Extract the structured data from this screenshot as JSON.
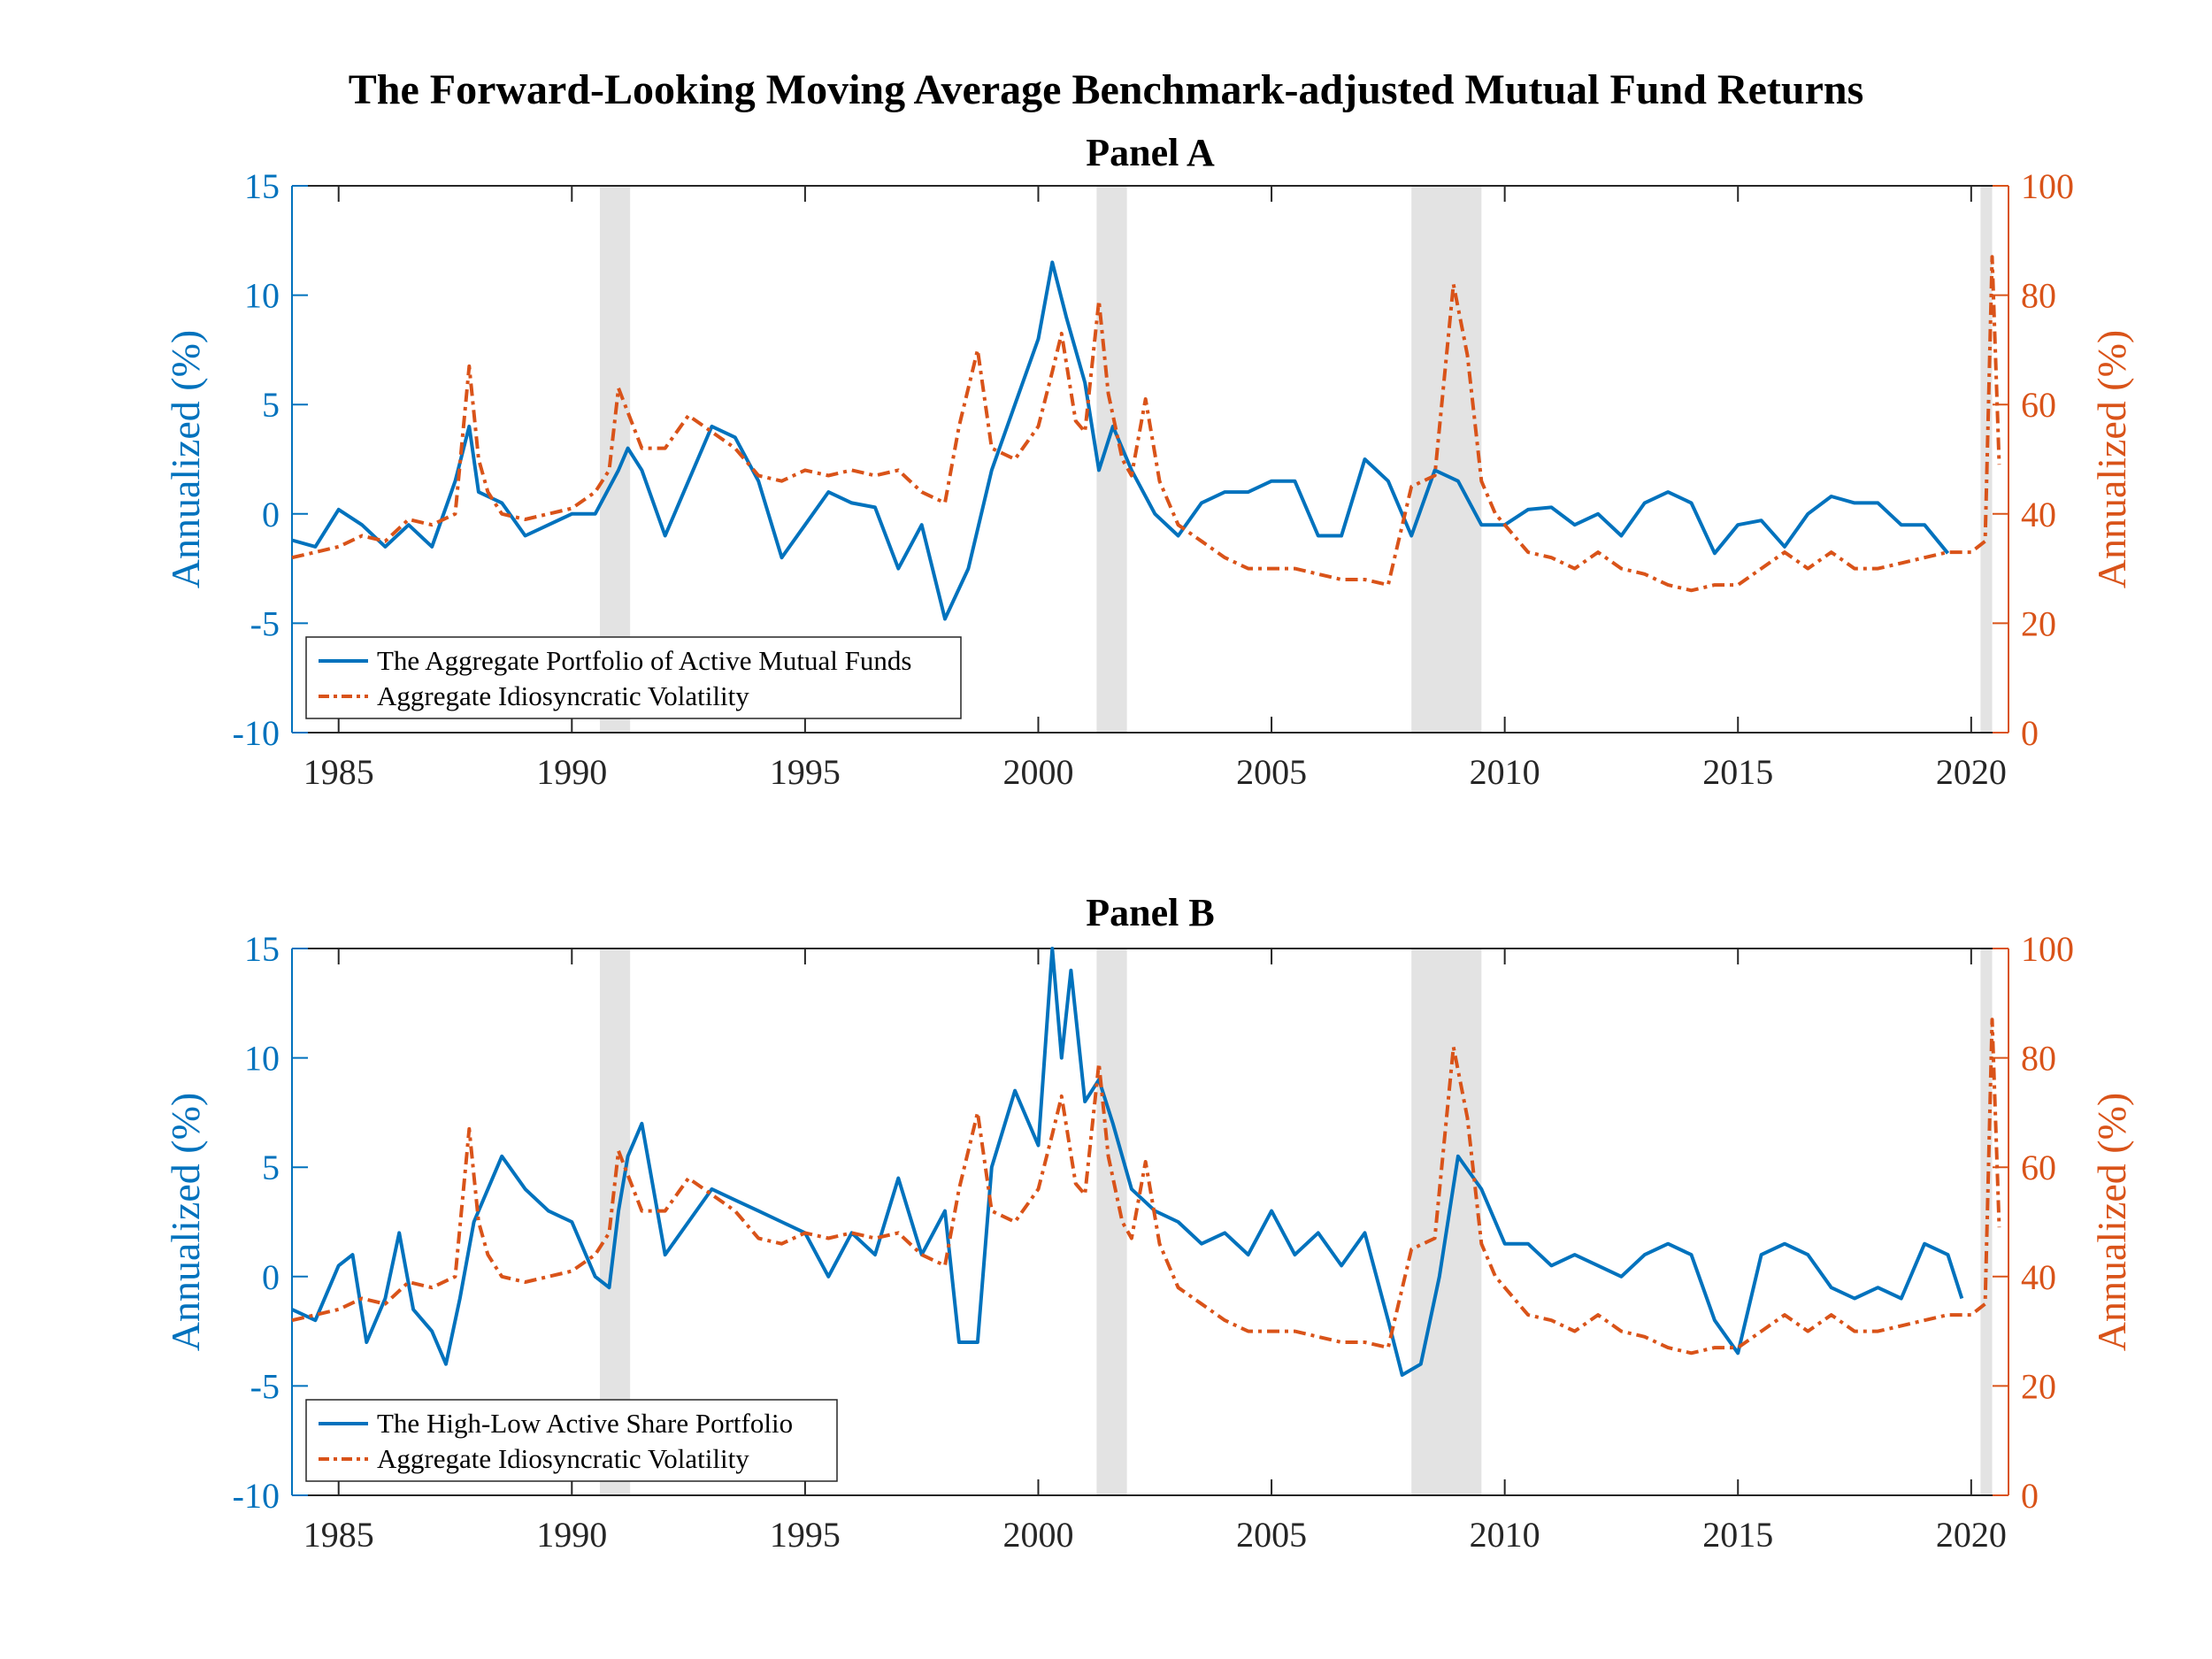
{
  "figure_title": "The Forward-Looking Moving Average Benchmark-adjusted Mutual Fund Returns",
  "colors": {
    "blue": "#0072BD",
    "orange": "#D95319",
    "recession_shade": "#E3E3E3",
    "axis": "#262626"
  },
  "chart_data": [
    {
      "type": "line",
      "title": "Panel A",
      "xlim": [
        1984.0,
        2020.8
      ],
      "xticks": [
        1985,
        1990,
        1995,
        2000,
        2005,
        2010,
        2015,
        2020
      ],
      "ylabel_left": "Annualized (%)",
      "ylim_left": [
        -10,
        15
      ],
      "yticks_left": [
        -10,
        -5,
        0,
        5,
        10,
        15
      ],
      "ylabel_right": "Annualized (%)",
      "ylim_right": [
        0,
        100
      ],
      "yticks_right": [
        0,
        20,
        40,
        60,
        80,
        100
      ],
      "legend_position": "bottom-left",
      "grid": false,
      "recessions": [
        [
          1990.6,
          1991.25
        ],
        [
          2001.25,
          2001.9
        ],
        [
          2008.0,
          2009.5
        ],
        [
          2020.2,
          2020.45
        ]
      ],
      "series": [
        {
          "name": "The Aggregate Portfolio of Active Mutual Funds",
          "axis": "left",
          "style": "solid",
          "x": [
            1984.0,
            1984.5,
            1985.0,
            1985.5,
            1986.0,
            1986.5,
            1987.0,
            1987.5,
            1987.8,
            1988.0,
            1988.5,
            1989.0,
            1989.5,
            1990.0,
            1990.5,
            1991.0,
            1991.2,
            1991.5,
            1992.0,
            1992.5,
            1993.0,
            1993.5,
            1994.0,
            1994.5,
            1995.0,
            1995.5,
            1996.0,
            1996.5,
            1997.0,
            1997.5,
            1998.0,
            1998.5,
            1999.0,
            1999.5,
            2000.0,
            2000.3,
            2000.6,
            2001.0,
            2001.3,
            2001.6,
            2002.0,
            2002.5,
            2003.0,
            2003.5,
            2004.0,
            2004.5,
            2005.0,
            2005.5,
            2006.0,
            2006.5,
            2007.0,
            2007.5,
            2008.0,
            2008.5,
            2009.0,
            2009.5,
            2010.0,
            2010.5,
            2011.0,
            2011.5,
            2012.0,
            2012.5,
            2013.0,
            2013.5,
            2014.0,
            2014.5,
            2015.0,
            2015.5,
            2016.0,
            2016.5,
            2017.0,
            2017.5,
            2018.0,
            2018.5,
            2019.0,
            2019.5
          ],
          "values": [
            -1.2,
            -1.5,
            0.2,
            -0.5,
            -1.5,
            -0.5,
            -1.5,
            1.5,
            4.0,
            1.0,
            0.5,
            -1.0,
            -0.5,
            0.0,
            0.0,
            2.0,
            3.0,
            2.0,
            -1.0,
            1.5,
            4.0,
            3.5,
            1.5,
            -2.0,
            -0.5,
            1.0,
            0.5,
            0.3,
            -2.5,
            -0.5,
            -4.8,
            -2.5,
            2.0,
            5.0,
            8.0,
            11.5,
            9.0,
            6.0,
            2.0,
            4.0,
            2.0,
            0.0,
            -1.0,
            0.5,
            1.0,
            1.0,
            1.5,
            1.5,
            -1.0,
            -1.0,
            2.5,
            1.5,
            -1.0,
            2.0,
            1.5,
            -0.5,
            -0.5,
            0.2,
            0.3,
            -0.5,
            0.0,
            -1.0,
            0.5,
            1.0,
            0.5,
            -1.8,
            -0.5,
            -0.3,
            -1.5,
            0.0,
            0.8,
            0.5,
            0.5,
            -0.5,
            -0.5,
            -1.8
          ]
        },
        {
          "name": "Aggregate Idiosyncratic Volatility",
          "axis": "right",
          "style": "dashdot",
          "x": [
            1984.0,
            1984.5,
            1985.0,
            1985.5,
            1986.0,
            1986.5,
            1987.0,
            1987.5,
            1987.8,
            1988.0,
            1988.2,
            1988.5,
            1989.0,
            1989.5,
            1990.0,
            1990.5,
            1990.8,
            1991.0,
            1991.5,
            1992.0,
            1992.5,
            1993.0,
            1993.5,
            1994.0,
            1994.5,
            1995.0,
            1995.5,
            1996.0,
            1996.5,
            1997.0,
            1997.5,
            1998.0,
            1998.3,
            1998.7,
            1999.0,
            1999.5,
            2000.0,
            2000.3,
            2000.5,
            2000.8,
            2001.0,
            2001.3,
            2001.5,
            2001.8,
            2002.0,
            2002.3,
            2002.6,
            2003.0,
            2003.5,
            2004.0,
            2004.5,
            2005.0,
            2005.5,
            2006.0,
            2006.5,
            2007.0,
            2007.5,
            2008.0,
            2008.5,
            2008.9,
            2009.2,
            2009.5,
            2009.8,
            2010.0,
            2010.5,
            2011.0,
            2011.5,
            2012.0,
            2012.5,
            2013.0,
            2013.5,
            2014.0,
            2014.5,
            2015.0,
            2015.5,
            2016.0,
            2016.5,
            2017.0,
            2017.5,
            2018.0,
            2018.5,
            2019.0,
            2019.5,
            2020.0,
            2020.3,
            2020.45,
            2020.6
          ],
          "values": [
            32,
            33,
            34,
            36,
            35,
            39,
            38,
            40,
            67,
            50,
            44,
            40,
            39,
            40,
            41,
            44,
            48,
            63,
            52,
            52,
            58,
            55,
            52,
            47,
            46,
            48,
            47,
            48,
            47,
            48,
            44,
            42,
            56,
            70,
            52,
            50,
            56,
            66,
            73,
            57,
            55,
            79,
            62,
            50,
            47,
            61,
            46,
            38,
            35,
            32,
            30,
            30,
            30,
            29,
            28,
            28,
            27,
            45,
            47,
            82,
            69,
            46,
            40,
            38,
            33,
            32,
            30,
            33,
            30,
            29,
            27,
            26,
            27,
            27,
            30,
            33,
            30,
            33,
            30,
            30,
            31,
            32,
            33,
            33,
            35,
            87,
            49
          ]
        }
      ]
    },
    {
      "type": "line",
      "title": "Panel B",
      "xlim": [
        1984.0,
        2020.8
      ],
      "xticks": [
        1985,
        1990,
        1995,
        2000,
        2005,
        2010,
        2015,
        2020
      ],
      "ylabel_left": "Annualized (%)",
      "ylim_left": [
        -10,
        15
      ],
      "yticks_left": [
        -10,
        -5,
        0,
        5,
        10,
        15
      ],
      "ylabel_right": "Annualized (%)",
      "ylim_right": [
        0,
        100
      ],
      "yticks_right": [
        0,
        20,
        40,
        60,
        80,
        100
      ],
      "legend_position": "bottom-left",
      "grid": false,
      "recessions": [
        [
          1990.6,
          1991.25
        ],
        [
          2001.25,
          2001.9
        ],
        [
          2008.0,
          2009.5
        ],
        [
          2020.2,
          2020.45
        ]
      ],
      "series": [
        {
          "name": "The High-Low Active Share Portfolio",
          "axis": "left",
          "style": "solid",
          "x": [
            1984.0,
            1984.5,
            1985.0,
            1985.3,
            1985.6,
            1986.0,
            1986.3,
            1986.6,
            1987.0,
            1987.3,
            1987.6,
            1987.9,
            1988.0,
            1988.5,
            1989.0,
            1989.5,
            1990.0,
            1990.5,
            1990.8,
            1991.0,
            1991.2,
            1991.5,
            1992.0,
            1992.5,
            1993.0,
            1993.5,
            1994.0,
            1994.5,
            1995.0,
            1995.5,
            1996.0,
            1996.5,
            1997.0,
            1997.5,
            1998.0,
            1998.3,
            1998.7,
            1999.0,
            1999.5,
            2000.0,
            2000.3,
            2000.5,
            2000.7,
            2001.0,
            2001.3,
            2001.6,
            2002.0,
            2002.5,
            2003.0,
            2003.5,
            2004.0,
            2004.5,
            2005.0,
            2005.5,
            2006.0,
            2006.5,
            2007.0,
            2007.5,
            2007.8,
            2008.2,
            2008.6,
            2009.0,
            2009.5,
            2010.0,
            2010.5,
            2011.0,
            2011.5,
            2012.0,
            2012.5,
            2013.0,
            2013.5,
            2014.0,
            2014.5,
            2015.0,
            2015.5,
            2016.0,
            2016.5,
            2017.0,
            2017.5,
            2018.0,
            2018.5,
            2019.0,
            2019.5,
            2019.8
          ],
          "values": [
            -1.5,
            -2.0,
            0.5,
            1.0,
            -3.0,
            -1.0,
            2.0,
            -1.5,
            -2.5,
            -4.0,
            -1.0,
            2.5,
            3.0,
            5.5,
            4.0,
            3.0,
            2.5,
            0.0,
            -0.5,
            3.0,
            5.5,
            7.0,
            1.0,
            2.5,
            4.0,
            3.5,
            3.0,
            2.5,
            2.0,
            0.0,
            2.0,
            1.0,
            4.5,
            1.0,
            3.0,
            -3.0,
            -3.0,
            5.0,
            8.5,
            6.0,
            15.0,
            10.0,
            14.0,
            8.0,
            9.0,
            7.0,
            4.0,
            3.0,
            2.5,
            1.5,
            2.0,
            1.0,
            3.0,
            1.0,
            2.0,
            0.5,
            2.0,
            -2.0,
            -4.5,
            -4.0,
            0.0,
            5.5,
            4.0,
            1.5,
            1.5,
            0.5,
            1.0,
            0.5,
            0.0,
            1.0,
            1.5,
            1.0,
            -2.0,
            -3.5,
            1.0,
            1.5,
            1.0,
            -0.5,
            -1.0,
            -0.5,
            -1.0,
            1.5,
            1.0,
            -1.0
          ]
        },
        {
          "name": "Aggregate Idiosyncratic Volatility",
          "axis": "right",
          "style": "dashdot",
          "x": [
            1984.0,
            1984.5,
            1985.0,
            1985.5,
            1986.0,
            1986.5,
            1987.0,
            1987.5,
            1987.8,
            1988.0,
            1988.2,
            1988.5,
            1989.0,
            1989.5,
            1990.0,
            1990.5,
            1990.8,
            1991.0,
            1991.5,
            1992.0,
            1992.5,
            1993.0,
            1993.5,
            1994.0,
            1994.5,
            1995.0,
            1995.5,
            1996.0,
            1996.5,
            1997.0,
            1997.5,
            1998.0,
            1998.3,
            1998.7,
            1999.0,
            1999.5,
            2000.0,
            2000.3,
            2000.5,
            2000.8,
            2001.0,
            2001.3,
            2001.5,
            2001.8,
            2002.0,
            2002.3,
            2002.6,
            2003.0,
            2003.5,
            2004.0,
            2004.5,
            2005.0,
            2005.5,
            2006.0,
            2006.5,
            2007.0,
            2007.5,
            2008.0,
            2008.5,
            2008.9,
            2009.2,
            2009.5,
            2009.8,
            2010.0,
            2010.5,
            2011.0,
            2011.5,
            2012.0,
            2012.5,
            2013.0,
            2013.5,
            2014.0,
            2014.5,
            2015.0,
            2015.5,
            2016.0,
            2016.5,
            2017.0,
            2017.5,
            2018.0,
            2018.5,
            2019.0,
            2019.5,
            2020.0,
            2020.3,
            2020.45,
            2020.6
          ],
          "values": [
            32,
            33,
            34,
            36,
            35,
            39,
            38,
            40,
            67,
            50,
            44,
            40,
            39,
            40,
            41,
            44,
            48,
            63,
            52,
            52,
            58,
            55,
            52,
            47,
            46,
            48,
            47,
            48,
            47,
            48,
            44,
            42,
            56,
            70,
            52,
            50,
            56,
            66,
            73,
            57,
            55,
            79,
            62,
            50,
            47,
            61,
            46,
            38,
            35,
            32,
            30,
            30,
            30,
            29,
            28,
            28,
            27,
            45,
            47,
            82,
            69,
            46,
            40,
            38,
            33,
            32,
            30,
            33,
            30,
            29,
            27,
            26,
            27,
            27,
            30,
            33,
            30,
            33,
            30,
            30,
            31,
            32,
            33,
            33,
            35,
            87,
            49
          ]
        }
      ]
    }
  ]
}
